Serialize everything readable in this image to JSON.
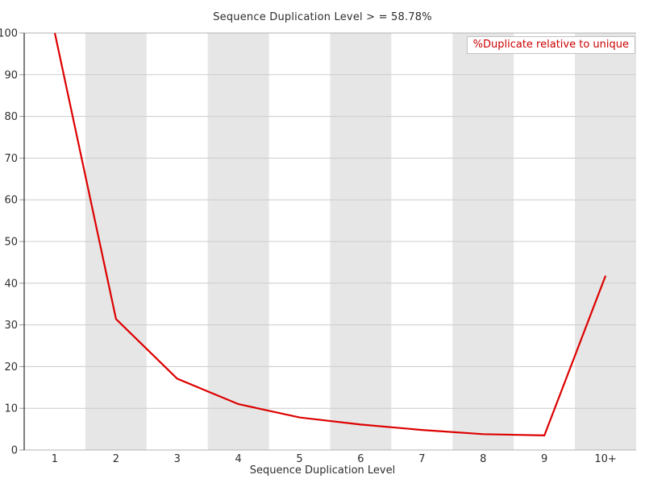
{
  "chart": {
    "title": "Sequence Duplication Level > = 58.78%",
    "legend_label": "%Duplicate relative to unique",
    "x_axis_label": "Sequence Duplication Level"
  },
  "colors": {
    "line": "#dd0000",
    "legend_text": "#cc0000",
    "band": "#e6e6e6",
    "gridline": "#cccccc",
    "border": "#b3b3b3",
    "tick": "#999999",
    "axis": "#000000",
    "text": "#2e2e2e"
  },
  "chart_data": {
    "type": "line",
    "title": "Sequence Duplication Level > = 58.78%",
    "xlabel": "Sequence Duplication Level",
    "ylabel": "",
    "categories": [
      "1",
      "2",
      "3",
      "4",
      "5",
      "6",
      "7",
      "8",
      "9",
      "10+"
    ],
    "series": [
      {
        "name": "%Duplicate relative to unique",
        "color": "#dd0000",
        "values": [
          100,
          31.4,
          17.1,
          11.0,
          7.8,
          6.1,
          4.8,
          3.8,
          3.5,
          41.8
        ]
      }
    ],
    "ylim": [
      0,
      100
    ],
    "y_ticks": [
      0,
      10,
      20,
      30,
      40,
      50,
      60,
      70,
      80,
      90,
      100
    ],
    "grid": true,
    "legend_position": "top-right",
    "plot_bands": {
      "color": "#e6e6e6",
      "banded_category_indices": [
        1,
        3,
        5,
        7,
        9
      ]
    }
  }
}
